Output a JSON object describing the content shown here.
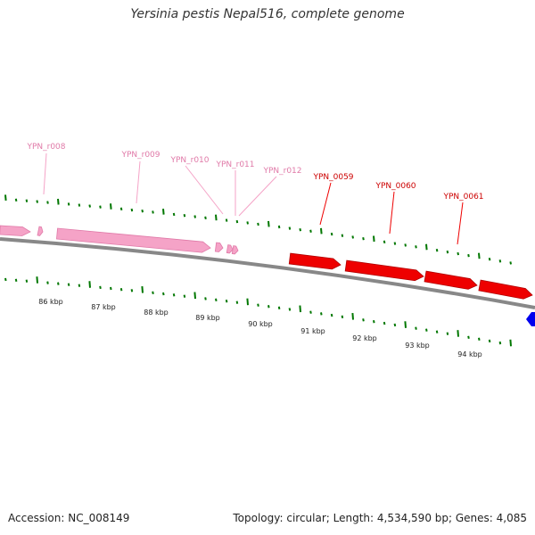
{
  "title": "Yersinia pestis Nepal516, complete genome",
  "accession": "Accession: NC_008149",
  "summary": "Topology: circular; Length: 4,534,590 bp; Genes: 4,085",
  "colors": {
    "rna": "#f5a3c7",
    "rna_stroke": "#e07aa8",
    "cds": "#ee0000",
    "cds_stroke": "#b00000",
    "blue_feature": "#0000ee",
    "tick": "#007700",
    "backbone": "#888888"
  },
  "scale_labels": [
    "86 kbp",
    "87 kbp",
    "88 kbp",
    "89 kbp",
    "90 kbp",
    "91 kbp",
    "92 kbp",
    "93 kbp",
    "94 kbp"
  ],
  "rna_genes": [
    "YPN_r008",
    "YPN_r009",
    "YPN_r010",
    "YPN_r011",
    "YPN_r012"
  ],
  "cds_genes": [
    "YPN_0059",
    "YPN_0060",
    "YPN_0061"
  ]
}
